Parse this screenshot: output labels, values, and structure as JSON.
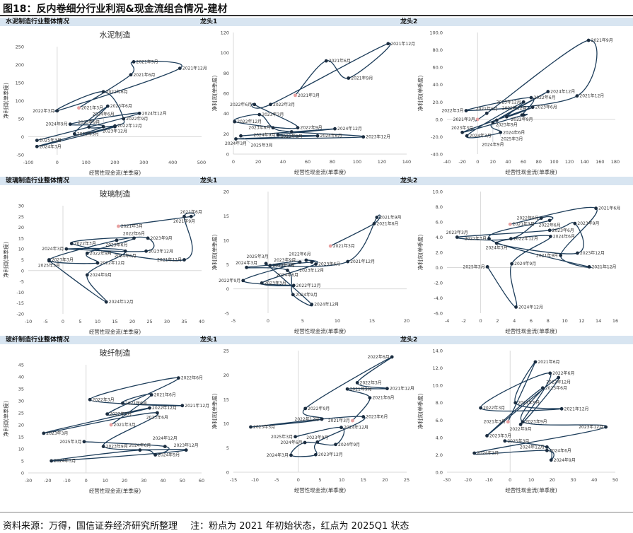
{
  "header": {
    "title": "图18：反内卷细分行业利润&现金流组合情况-建材"
  },
  "quarters": [
    "2021年3月",
    "2021年6月",
    "2021年9月",
    "2021年12月",
    "2022年3月",
    "2022年6月",
    "2022年9月",
    "2022年12月",
    "2023年3月",
    "2023年6月",
    "2023年9月",
    "2023年12月",
    "2024年3月",
    "2024年6月",
    "2024年9月",
    "2024年12月",
    "2025年3月"
  ],
  "rows": [
    {
      "section_title": "水泥制造行业整体情况",
      "leader1_label": "龙头1",
      "leader2_label": "龙头2"
    },
    {
      "section_title": "玻璃制造行业整体情况",
      "leader1_label": "龙头1",
      "leader2_label": "龙头2"
    },
    {
      "section_title": "玻纤制造行业整体情况",
      "leader1_label": "龙头1",
      "leader2_label": "龙头2"
    }
  ],
  "colors": {
    "line": "#1d3d5a",
    "marker": "#1b2d40",
    "start_point": "#e8a0a0",
    "axis_zero": "#d9d9d9",
    "strip": "#d8e5f1"
  },
  "chart_data": [
    {
      "type": "line",
      "title": "水泥制造",
      "xlabel": "经营性现金流(单季度)",
      "ylabel": "净利润(单季度)",
      "xlim": [
        -100,
        500
      ],
      "ylim": [
        -50,
        250
      ],
      "xstep": 100,
      "ystep": 50,
      "ydecimals": 0,
      "x": [
        75,
        255,
        265,
        425,
        0,
        160,
        230,
        200,
        60,
        175,
        110,
        200,
        -70,
        160,
        45,
        285,
        -70
      ],
      "y": [
        80,
        172,
        208,
        190,
        72,
        125,
        50,
        30,
        8,
        85,
        27,
        28,
        -27,
        28,
        35,
        65,
        -10
      ]
    },
    {
      "type": "line",
      "title": "",
      "xlabel": "经营性现金流(单季度)",
      "ylabel": "净利润(单季度)",
      "xlim": [
        0,
        140
      ],
      "ylim": [
        0,
        120
      ],
      "xstep": 20,
      "ystep": 20,
      "ydecimals": 0,
      "x": [
        50,
        75,
        93,
        125,
        30,
        17,
        52,
        1,
        21,
        32,
        47,
        105,
        2,
        68,
        36,
        82,
        6
      ],
      "y": [
        58,
        92,
        75,
        109,
        49,
        49,
        26,
        32,
        39,
        26,
        22,
        17,
        15,
        18,
        19,
        25,
        18
      ]
    },
    {
      "type": "line",
      "title": "",
      "xlabel": "经营性现金流(单季度)",
      "ylabel": "净利润(单季度)",
      "xlim": [
        -40,
        180
      ],
      "ylim": [
        -40,
        100
      ],
      "xstep": 20,
      "ystep": 20,
      "ydecimals": 1,
      "x": [
        0,
        12,
        145,
        130,
        -15,
        70,
        58,
        60,
        -20,
        72,
        38,
        60,
        -14,
        30,
        20,
        92,
        25
      ],
      "y": [
        0,
        7,
        91,
        27,
        10,
        25,
        5,
        5,
        -15,
        14,
        3,
        20,
        -19,
        -15,
        -4,
        32,
        -1
      ]
    },
    {
      "type": "line",
      "title": "玻璃制造",
      "xlabel": "经营性现金流(单季度)",
      "ylabel": "净利润(单季度)",
      "xlim": [
        -10,
        40
      ],
      "ylim": [
        -20,
        30
      ],
      "xstep": 5,
      "ystep": 5,
      "ydecimals": 0,
      "x": [
        16,
        37,
        35,
        35,
        2.5,
        20.5,
        7,
        10,
        -4,
        15.5,
        24.5,
        24,
        1,
        18,
        7,
        12.5,
        -4
      ],
      "y": [
        20.5,
        25,
        25,
        5,
        12.5,
        15,
        8,
        3.5,
        5,
        14,
        15,
        9,
        10,
        9,
        -2,
        -14.5,
        4.5
      ]
    },
    {
      "type": "line",
      "title": "",
      "xlabel": "经营性现金流(单季度)",
      "ylabel": "净利润(单季度)",
      "xlim": [
        -5,
        20
      ],
      "ylim": [
        -5,
        20
      ],
      "xstep": 5,
      "ystep": 5,
      "ydecimals": 0,
      "x": [
        9,
        15.3,
        15.7,
        11.5,
        0.3,
        4.6,
        -3.6,
        3.7,
        -0.9,
        6.9,
        5.5,
        6.3,
        -3.1,
        2.8,
        3.6,
        6.3,
        -0.3
      ],
      "y": [
        8.8,
        13.4,
        14.7,
        5.6,
        4.8,
        5.5,
        1.7,
        0.7,
        1.2,
        5.1,
        5.9,
        5.5,
        4.4,
        3.8,
        -1.2,
        -3.2,
        5.2
      ]
    },
    {
      "type": "line",
      "title": "",
      "xlabel": "经营性现金流(单季度)",
      "ylabel": "净利润(单季度)",
      "xlim": [
        -4,
        16
      ],
      "ylim": [
        -6,
        10
      ],
      "xstep": 2,
      "ystep": 2,
      "ydecimals": 1,
      "x": [
        3.5,
        13.7,
        9.5,
        12.9,
        1,
        8.2,
        7.2,
        3.6,
        -2.8,
        8.2,
        11.2,
        11.5,
        1.9,
        8.3,
        3.7,
        4.2,
        0.8
      ],
      "y": [
        5.7,
        7.8,
        1.6,
        0.1,
        3.8,
        6.2,
        6.5,
        3.8,
        4,
        4.9,
        5.8,
        1.9,
        3.2,
        4.1,
        0.5,
        -5.2,
        0.1
      ]
    },
    {
      "type": "line",
      "title": "玻纤制造",
      "xlabel": "经营性现金流(单季度)",
      "ylabel": "净利润(单季度)",
      "xlim": [
        -30,
        60
      ],
      "ylim": [
        0,
        45
      ],
      "xstep": 10,
      "ystep": 5,
      "ydecimals": 0,
      "x": [
        13,
        34,
        19,
        50,
        2,
        48,
        11,
        33,
        -22,
        37,
        9,
        52,
        -18,
        28,
        36,
        41,
        -1
      ],
      "y": [
        20,
        32.5,
        29,
        28,
        30.5,
        39.5,
        24.5,
        27,
        16.5,
        25,
        11,
        9.5,
        5,
        9.5,
        7.5,
        11,
        13
      ]
    },
    {
      "type": "line",
      "title": "",
      "xlabel": "经营性现金流(单季度)",
      "ylabel": "净利润(单季度)",
      "xlim": [
        -15,
        25
      ],
      "ylim": [
        0,
        25
      ],
      "xstep": 5,
      "ystep": 5,
      "ydecimals": 0,
      "x": [
        12.5,
        16.5,
        11.3,
        20.5,
        13.6,
        21.6,
        1.6,
        5.4,
        -11,
        15,
        4.4,
        4,
        -1.7,
        1.5,
        8.6,
        9.9,
        -0.7
      ],
      "y": [
        10.6,
        15.3,
        17.1,
        17.2,
        18.4,
        23.7,
        13.1,
        10.9,
        9.3,
        11.4,
        6.2,
        3.6,
        3.5,
        6.1,
        5.7,
        9.2,
        7.3
      ]
    },
    {
      "type": "line",
      "title": "",
      "xlabel": "经营性现金流(单季度)",
      "ylabel": "净利润(单季度)",
      "xlim": [
        -30,
        50
      ],
      "ylim": [
        0,
        14
      ],
      "xstep": 10,
      "ystep": 2,
      "ydecimals": 1,
      "x": [
        -1,
        12,
        2.5,
        24.5,
        -14,
        19,
        5,
        23,
        -11,
        15.5,
        6,
        45.5,
        -17,
        17.5,
        19.5,
        17.5,
        -2.5
      ],
      "y": [
        5.8,
        12.7,
        8,
        7.3,
        7.4,
        11.4,
        5.5,
        10.9,
        4.2,
        9.7,
        5.8,
        5.2,
        2.2,
        2.5,
        1.4,
        2.9,
        3.6
      ]
    }
  ],
  "footer": {
    "source": "资料来源：万得，国信证券经济研究所整理",
    "note": "注：粉点为 2021 年初始状态，红点为 2025Q1 状态"
  }
}
